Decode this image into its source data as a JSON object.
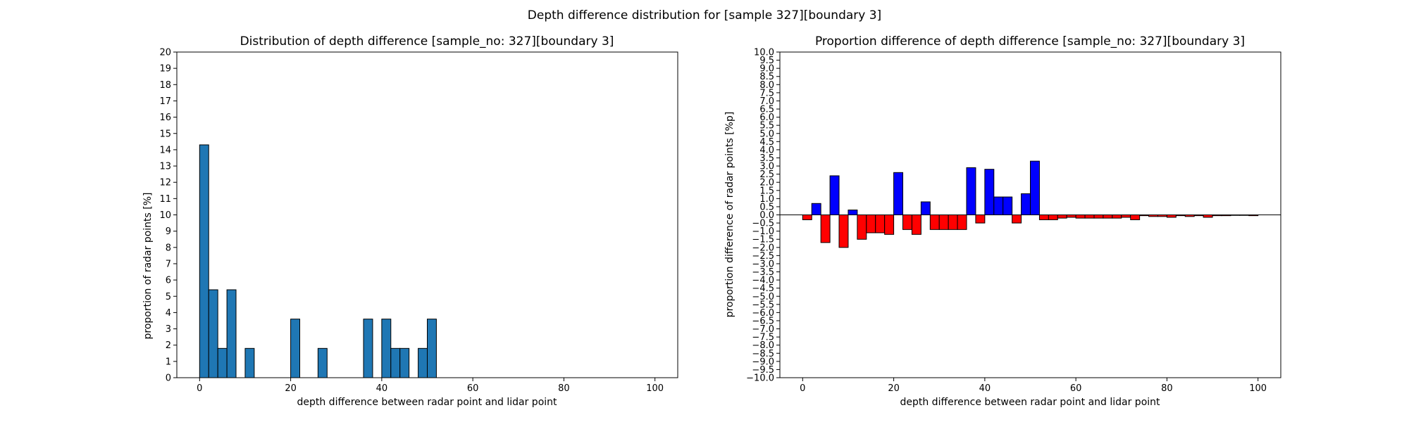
{
  "figure": {
    "suptitle": "Depth difference distribution for [sample 327][boundary 3]"
  },
  "chart_data": [
    {
      "type": "bar",
      "title": "Distribution of depth difference [sample_no: 327][boundary 3]",
      "xlabel": "depth difference between radar point and lidar point",
      "ylabel": "proportion of radar points [%]",
      "xlim": [
        -5,
        105
      ],
      "ylim": [
        0,
        20
      ],
      "xticks": [
        0,
        20,
        40,
        60,
        80,
        100
      ],
      "yticks": [
        0,
        1,
        2,
        3,
        4,
        5,
        6,
        7,
        8,
        9,
        10,
        11,
        12,
        13,
        14,
        15,
        16,
        17,
        18,
        19,
        20
      ],
      "bar_width": 2,
      "bar_color": "#1f77b4",
      "grid": false,
      "x": [
        1,
        3,
        5,
        7,
        9,
        11,
        13,
        15,
        17,
        19,
        21,
        23,
        25,
        27,
        29,
        31,
        33,
        35,
        37,
        39,
        41,
        43,
        45,
        47,
        49,
        51,
        53,
        55,
        57,
        59,
        61,
        63,
        65,
        67,
        69,
        71,
        73,
        75,
        77,
        79,
        81,
        83,
        85,
        87,
        89,
        91,
        93,
        95,
        97,
        99
      ],
      "values": [
        14.3,
        5.4,
        1.8,
        5.4,
        0,
        1.8,
        0,
        0,
        0,
        0,
        3.6,
        0,
        0,
        1.8,
        0,
        0,
        0,
        0,
        3.6,
        0,
        3.6,
        1.8,
        1.8,
        0,
        1.8,
        3.6,
        0,
        0,
        0,
        0,
        0,
        0,
        0,
        0,
        0,
        0,
        0,
        0,
        0,
        0,
        0,
        0,
        0,
        0,
        0,
        0,
        0,
        0,
        0,
        0
      ]
    },
    {
      "type": "bar",
      "title": "Proportion difference of depth difference [sample_no: 327][boundary 3]",
      "xlabel": "depth difference between radar point and lidar point",
      "ylabel": "proportion difference of radar points [%p]",
      "xlim": [
        -5,
        105
      ],
      "ylim": [
        -10,
        10
      ],
      "xticks": [
        0,
        20,
        40,
        60,
        80,
        100
      ],
      "yticks": [
        -10.0,
        -9.5,
        -9.0,
        -8.5,
        -8.0,
        -7.5,
        -7.0,
        -6.5,
        -6.0,
        -5.5,
        -5.0,
        -4.5,
        -4.0,
        -3.5,
        -3.0,
        -2.5,
        -2.0,
        -1.5,
        -1.0,
        -0.5,
        0.0,
        0.5,
        1.0,
        1.5,
        2.0,
        2.5,
        3.0,
        3.5,
        4.0,
        4.5,
        5.0,
        5.5,
        6.0,
        6.5,
        7.0,
        7.5,
        8.0,
        8.5,
        9.0,
        9.5,
        10.0
      ],
      "bar_width": 2,
      "positive_color": "#0000ff",
      "negative_color": "#ff0000",
      "grid": false,
      "x": [
        1,
        3,
        5,
        7,
        9,
        11,
        13,
        15,
        17,
        19,
        21,
        23,
        25,
        27,
        29,
        31,
        33,
        35,
        37,
        39,
        41,
        43,
        45,
        47,
        49,
        51,
        53,
        55,
        57,
        59,
        61,
        63,
        65,
        67,
        69,
        71,
        73,
        75,
        77,
        79,
        81,
        83,
        85,
        87,
        89,
        91,
        93,
        95,
        97,
        99
      ],
      "values": [
        -0.3,
        0.7,
        -1.7,
        2.4,
        -2.0,
        0.3,
        -1.5,
        -1.1,
        -1.1,
        -1.2,
        2.6,
        -0.9,
        -1.2,
        0.8,
        -0.9,
        -0.9,
        -0.9,
        -0.9,
        2.9,
        -0.5,
        2.8,
        1.1,
        1.1,
        -0.5,
        1.3,
        3.3,
        -0.3,
        -0.3,
        -0.2,
        -0.15,
        -0.2,
        -0.2,
        -0.2,
        -0.2,
        -0.2,
        -0.15,
        -0.3,
        -0.05,
        -0.1,
        -0.1,
        -0.15,
        -0.05,
        -0.1,
        -0.05,
        -0.15,
        -0.05,
        -0.05,
        -0.03,
        -0.03,
        -0.05
      ]
    }
  ]
}
